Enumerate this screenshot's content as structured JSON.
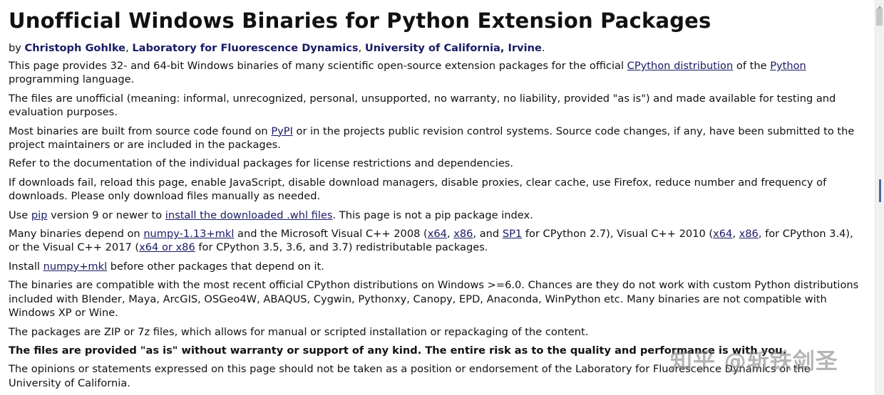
{
  "page": {
    "title": "Unofficial Windows Binaries for Python Extension Packages",
    "byline": {
      "prefix": "by ",
      "author": "Christoph Gohlke",
      "sep1": ", ",
      "lab": "Laboratory for Fluorescence Dynamics",
      "sep2": ", ",
      "university": "University of California, Irvine",
      "end": "."
    }
  },
  "paragraphs": {
    "p1": {
      "t1": "This page provides 32- and 64-bit Windows binaries of many scientific open-source extension packages for the official ",
      "link1": "CPython distribution",
      "t2": " of the ",
      "link2": "Python",
      "t3": " programming language."
    },
    "p2": "The files are unofficial (meaning: informal, unrecognized, personal, unsupported, no warranty, no liability, provided \"as is\") and made available for testing and evaluation purposes.",
    "p3": {
      "t1": "Most binaries are built from source code found on ",
      "link1": "PyPI",
      "t2": " or in the projects public revision control systems. Source code changes, if any, have been submitted to the project maintainers or are included in the packages."
    },
    "p4": "Refer to the documentation of the individual packages for license restrictions and dependencies.",
    "p5": "If downloads fail, reload this page, enable JavaScript, disable download managers, disable proxies, clear cache, use Firefox, reduce number and frequency of downloads. Please only download files manually as needed.",
    "p6": {
      "t1": "Use ",
      "link1": "pip",
      "t2": " version 9 or newer to ",
      "link2": "install the downloaded .whl files",
      "t3": ". This page is not a pip package index."
    },
    "p7": {
      "t1": "Many binaries depend on ",
      "link1": "numpy-1.13+mkl",
      "t2": " and the Microsoft Visual C++ 2008 (",
      "link2": "x64",
      "t3": ", ",
      "link3": "x86",
      "t4": ", and ",
      "link4": "SP1",
      "t5": " for CPython 2.7), Visual C++ 2010 (",
      "link5": "x64",
      "t6": ", ",
      "link6": "x86",
      "t7": ", for CPython 3.4), or the Visual C++ 2017 (",
      "link7": "x64 or x86",
      "t8": " for CPython 3.5, 3.6, and 3.7) redistributable packages."
    },
    "p8": {
      "t1": "Install ",
      "link1": "numpy+mkl",
      "t2": " before other packages that depend on it."
    },
    "p9": "The binaries are compatible with the most recent official CPython distributions on Windows >=6.0. Chances are they do not work with custom Python distributions included with Blender, Maya, ArcGIS, OSGeo4W, ABAQUS, Cygwin, Pythonxy, Canopy, EPD, Anaconda, WinPython etc. Many binaries are not compatible with Windows XP or Wine.",
    "p10": "The packages are ZIP or 7z files, which allows for manual or scripted installation or repackaging of the content.",
    "p11": "The files are provided \"as is\" without warranty or support of any kind. The entire risk as to the quality and performance is with you.",
    "p12": "The opinions or statements expressed on this page should not be taken as a position or endorsement of the Laboratory for Fluorescence Dynamics or the University of California."
  },
  "watermark": "知乎 @斩铁剑圣"
}
